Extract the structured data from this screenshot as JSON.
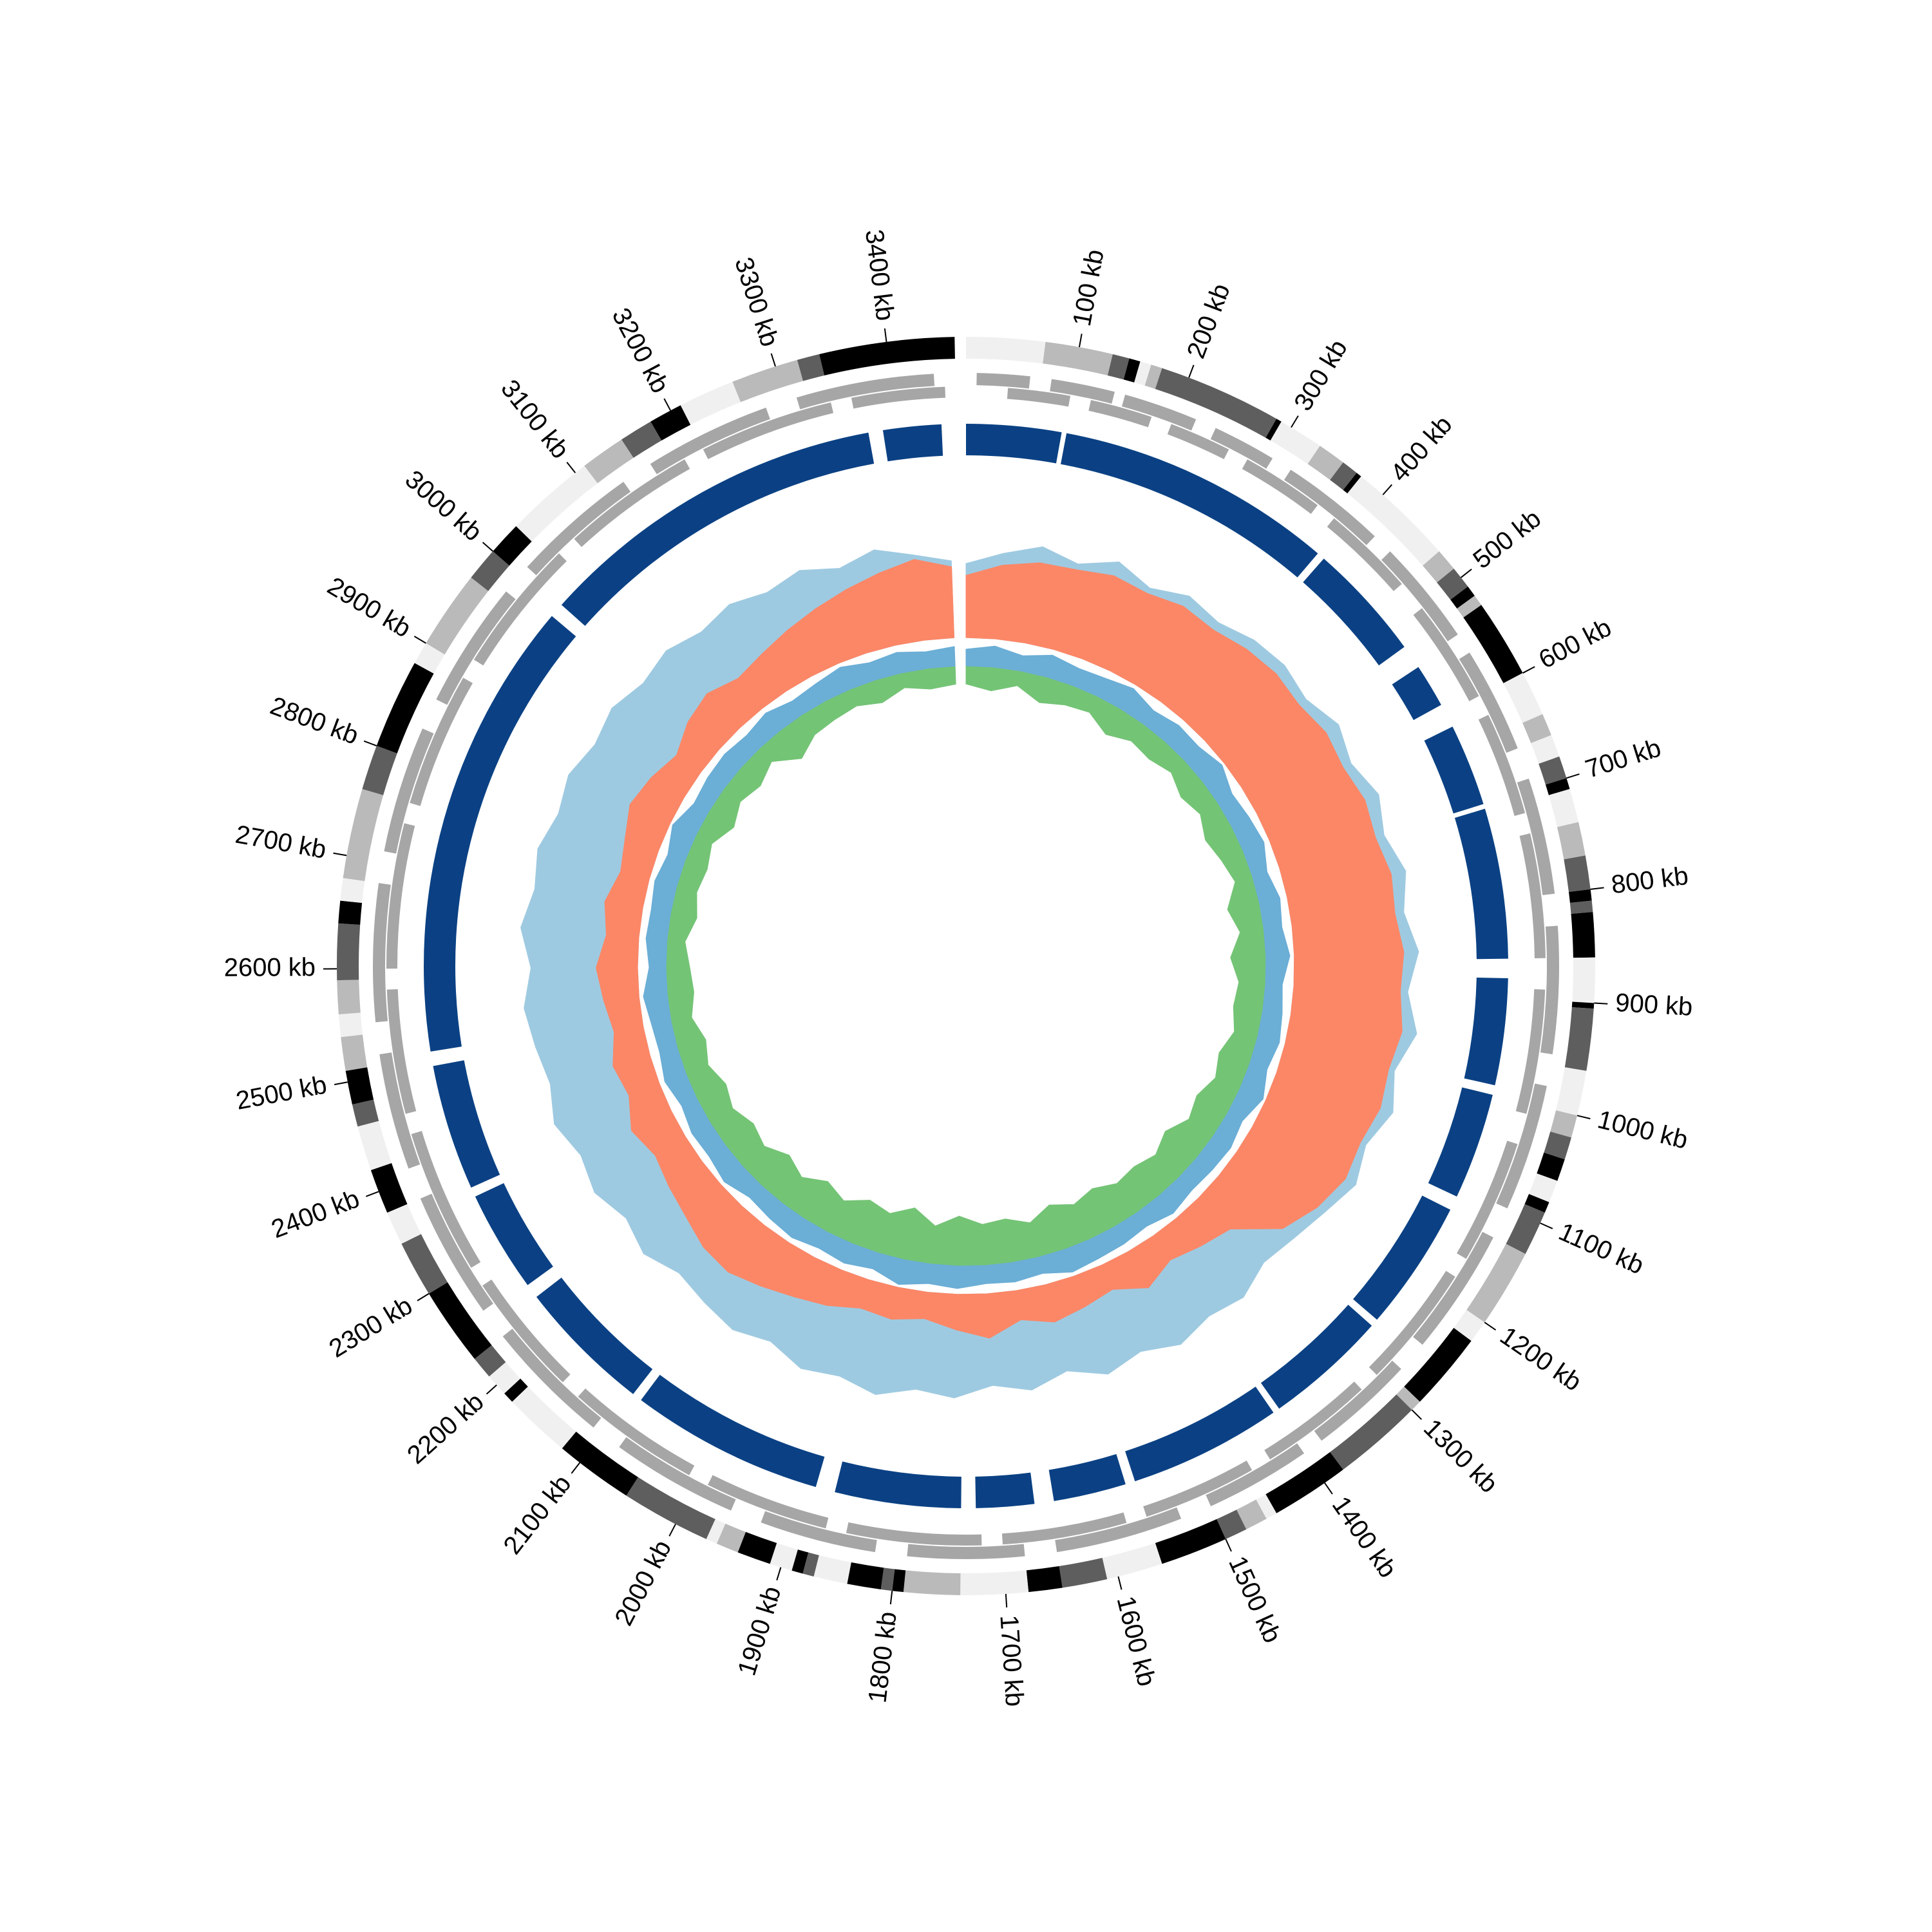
{
  "chart_data": {
    "type": "circos",
    "xlim": [
      0,
      3470
    ],
    "xticks": [
      {
        "value": 100,
        "label": "100 kb"
      },
      {
        "value": 200,
        "label": "200 kb"
      },
      {
        "value": 300,
        "label": "300 kb"
      },
      {
        "value": 400,
        "label": "400 kb"
      },
      {
        "value": 500,
        "label": "500 kb"
      },
      {
        "value": 600,
        "label": "600 kb"
      },
      {
        "value": 700,
        "label": "700 kb"
      },
      {
        "value": 800,
        "label": "800 kb"
      },
      {
        "value": 900,
        "label": "900 kb"
      },
      {
        "value": 1000,
        "label": "1000 kb"
      },
      {
        "value": 1100,
        "label": "1100 kb"
      },
      {
        "value": 1200,
        "label": "1200 kb"
      },
      {
        "value": 1300,
        "label": "1300 kb"
      },
      {
        "value": 1400,
        "label": "1400 kb"
      },
      {
        "value": 1500,
        "label": "1500 kb"
      },
      {
        "value": 1600,
        "label": "1600 kb"
      },
      {
        "value": 1700,
        "label": "1700 kb"
      },
      {
        "value": 1800,
        "label": "1800 kb"
      },
      {
        "value": 1900,
        "label": "1900 kb"
      },
      {
        "value": 2000,
        "label": "2000 kb"
      },
      {
        "value": 2100,
        "label": "2100 kb"
      },
      {
        "value": 2200,
        "label": "2200 kb"
      },
      {
        "value": 2300,
        "label": "2300 kb"
      },
      {
        "value": 2400,
        "label": "2400 kb"
      },
      {
        "value": 2500,
        "label": "2500 kb"
      },
      {
        "value": 2600,
        "label": "2600 kb"
      },
      {
        "value": 2700,
        "label": "2700 kb"
      },
      {
        "value": 2800,
        "label": "2800 kb"
      },
      {
        "value": 2900,
        "label": "2900 kb"
      },
      {
        "value": 3000,
        "label": "3000 kb"
      },
      {
        "value": 3100,
        "label": "3100 kb"
      },
      {
        "value": 3200,
        "label": "3200 kb"
      },
      {
        "value": 3300,
        "label": "3300 kb"
      },
      {
        "value": 3400,
        "label": "3400 kb"
      }
    ],
    "band_edges": [
      0,
      70,
      130,
      145,
      155,
      165,
      175,
      285,
      290,
      330,
      355,
      370,
      375,
      470,
      490,
      510,
      520,
      530,
      600,
      640,
      660,
      680,
      700,
      710,
      740,
      770,
      800,
      810,
      820,
      860,
      900,
      905,
      960,
      1000,
      1020,
      1040,
      1060,
      1080,
      1090,
      1130,
      1200,
      1220,
      1290,
      1300,
      1380,
      1450,
      1460,
      1480,
      1500,
      1560,
      1610,
      1650,
      1680,
      1740,
      1790,
      1800,
      1810,
      1840,
      1870,
      1880,
      1890,
      1910,
      1940,
      1960,
      1970,
      2050,
      2120,
      2180,
      2190,
      2210,
      2230,
      2300,
      2350,
      2380,
      2420,
      2460,
      2480,
      2510,
      2540,
      2560,
      2590,
      2640,
      2660,
      2680,
      2760,
      2800,
      2880,
      2900,
      2970,
      3000,
      3030,
      3110,
      3150,
      3180,
      3210,
      3260,
      3320,
      3340,
      3460
    ],
    "band_colors": [
      "#f0f0f0",
      "#bababa",
      "#5e5e5e",
      "#000000",
      "#f0f0f0",
      "#bababa",
      "#5e5e5e",
      "#000000",
      "#f0f0f0",
      "#bababa",
      "#5e5e5e",
      "#000000",
      "#f0f0f0",
      "#bababa",
      "#5e5e5e",
      "#000000",
      "#bababa",
      "#000000",
      "#f0f0f0",
      "#bababa",
      "#f0f0f0",
      "#5e5e5e",
      "#000000",
      "#f0f0f0",
      "#bababa",
      "#5e5e5e",
      "#000000",
      "#5e5e5e",
      "#000000",
      "#f0f0f0",
      "#000000",
      "#5e5e5e",
      "#f0f0f0",
      "#bababa",
      "#5e5e5e",
      "#000000",
      "#f0f0f0",
      "#000000",
      "#5e5e5e",
      "#bababa",
      "#f0f0f0",
      "#000000",
      "#bababa",
      "#5e5e5e",
      "#000000",
      "#f0f0f0",
      "#bababa",
      "#5e5e5e",
      "#000000",
      "#f0f0f0",
      "#5e5e5e",
      "#000000",
      "#f0f0f0",
      "#bababa",
      "#000000",
      "#5e5e5e",
      "#000000",
      "#f0f0f0",
      "#5e5e5e",
      "#000000",
      "#f0f0f0",
      "#000000",
      "#bababa",
      "#f0f0f0",
      "#5e5e5e",
      "#000000",
      "#f0f0f0",
      "#000000",
      "#f0f0f0",
      "#5e5e5e",
      "#000000",
      "#5e5e5e",
      "#f0f0f0",
      "#000000",
      "#f0f0f0",
      "#5e5e5e",
      "#000000",
      "#bababa",
      "#f0f0f0",
      "#bababa",
      "#5e5e5e",
      "#000000",
      "#f0f0f0",
      "#bababa",
      "#5e5e5e",
      "#000000",
      "#f0f0f0",
      "#bababa",
      "#5e5e5e",
      "#000000",
      "#f0f0f0",
      "#bababa",
      "#5e5e5e",
      "#000000",
      "#f0f0f0",
      "#bababa",
      "#5e5e5e",
      "#000000"
    ],
    "gene_tracks": [
      {
        "color": "#a6a6a6",
        "starts": [
          10,
          80,
          150,
          240,
          320,
          440,
          560,
          690,
          830,
          980,
          1130,
          1280,
          1400,
          1530,
          1680,
          1820,
          1960,
          2110,
          2260,
          2410,
          2550,
          2710,
          2860,
          3010,
          3160,
          3310
        ],
        "ends": [
          60,
          140,
          220,
          300,
          420,
          540,
          660,
          800,
          950,
          1100,
          1250,
          1380,
          1500,
          1650,
          1790,
          1930,
          2080,
          2230,
          2380,
          2520,
          2680,
          2830,
          2980,
          3130,
          3280,
          3440
        ]
      },
      {
        "color": "#a6a6a6",
        "starts": [
          40,
          120,
          200,
          280,
          380,
          500,
          620,
          740,
          890,
          1040,
          1180,
          1320,
          1450,
          1580,
          1720,
          1870,
          2010,
          2160,
          2300,
          2460,
          2600,
          2760,
          2910,
          3060,
          3210,
          3360
        ],
        "ends": [
          100,
          180,
          260,
          360,
          470,
          600,
          720,
          860,
          1010,
          1160,
          1300,
          1430,
          1560,
          1700,
          1850,
          1990,
          2140,
          2280,
          2440,
          2580,
          2740,
          2890,
          3040,
          3190,
          3340,
          3450
        ]
      }
    ],
    "blocks": {
      "color": "#0b4184",
      "starts": [
        0,
        103,
        398,
        545,
        615,
        705,
        880,
        1000,
        1125,
        1268,
        1402,
        1570,
        1665,
        1740,
        1890,
        2100,
        2255,
        2370,
        2515,
        3005,
        3385
      ],
      "ends": [
        98,
        390,
        520,
        590,
        700,
        860,
        990,
        1110,
        1260,
        1395,
        1560,
        1645,
        1725,
        1870,
        2090,
        2240,
        2360,
        2500,
        2990,
        3370,
        3445
      ]
    },
    "profile": {
      "x": [
        0,
        50,
        100,
        150,
        200,
        250,
        300,
        350,
        400,
        450,
        500,
        550,
        600,
        650,
        700,
        750,
        800,
        850,
        900,
        950,
        1000,
        1050,
        1100,
        1150,
        1200,
        1250,
        1300,
        1350,
        1400,
        1450,
        1500,
        1550,
        1600,
        1650,
        1700,
        1750,
        1800,
        1850,
        1900,
        1950,
        2000,
        2050,
        2100,
        2150,
        2200,
        2250,
        2300,
        2350,
        2400,
        2450,
        2500,
        2550,
        2600,
        2650,
        2700,
        2750,
        2800,
        2850,
        2900,
        2950,
        3000,
        3050,
        3100,
        3150,
        3200,
        3250,
        3300,
        3350,
        3400,
        3450
      ],
      "series": [
        {
          "color": "#9ecae1",
          "direction": "out",
          "values": [
            0.5,
            0.58,
            0.66,
            0.6,
            0.7,
            0.62,
            0.7,
            0.66,
            0.72,
            0.74,
            0.7,
            0.78,
            0.72,
            0.8,
            0.74,
            0.82,
            0.76,
            0.84,
            0.77,
            0.86,
            0.76,
            0.83,
            0.74,
            0.8,
            0.72,
            0.66,
            0.62,
            0.7,
            0.66,
            0.72,
            0.64,
            0.7,
            0.6,
            0.68,
            0.62,
            0.7,
            0.66,
            0.74,
            0.68,
            0.72,
            0.64,
            0.7,
            0.66,
            0.62,
            0.7,
            0.64,
            0.72,
            0.68,
            0.76,
            0.7,
            0.74,
            0.78,
            0.72,
            0.8,
            0.74,
            0.78,
            0.72,
            0.76,
            0.7,
            0.74,
            0.68,
            0.72,
            0.66,
            0.7,
            0.64,
            0.68,
            0.6,
            0.66,
            0.58,
            0.52
          ]
        },
        {
          "color": "#fb8767",
          "direction": "out",
          "values": [
            0.42,
            0.5,
            0.55,
            0.56,
            0.6,
            0.58,
            0.62,
            0.6,
            0.64,
            0.66,
            0.64,
            0.68,
            0.66,
            0.7,
            0.68,
            0.72,
            0.7,
            0.74,
            0.72,
            0.76,
            0.72,
            0.74,
            0.7,
            0.72,
            0.66,
            0.56,
            0.3,
            0.25,
            0.2,
            0.28,
            0.18,
            0.22,
            0.26,
            0.2,
            0.3,
            0.24,
            0.18,
            0.22,
            0.2,
            0.26,
            0.3,
            0.35,
            0.4,
            0.38,
            0.32,
            0.28,
            0.24,
            0.3,
            0.22,
            0.26,
            0.2,
            0.24,
            0.28,
            0.22,
            0.26,
            0.2,
            0.24,
            0.3,
            0.26,
            0.2,
            0.28,
            0.32,
            0.26,
            0.3,
            0.35,
            0.4,
            0.45,
            0.5,
            0.55,
            0.48
          ]
        }
      ]
    },
    "inner_profile": {
      "x": [
        0,
        50,
        100,
        150,
        200,
        250,
        300,
        350,
        400,
        450,
        500,
        550,
        600,
        650,
        700,
        750,
        800,
        850,
        900,
        950,
        1000,
        1050,
        1100,
        1150,
        1200,
        1250,
        1300,
        1350,
        1400,
        1450,
        1500,
        1550,
        1600,
        1650,
        1700,
        1750,
        1800,
        1850,
        1900,
        1950,
        2000,
        2050,
        2100,
        2150,
        2200,
        2250,
        2300,
        2350,
        2400,
        2450,
        2500,
        2550,
        2600,
        2650,
        2700,
        2750,
        2800,
        2850,
        2900,
        2950,
        3000,
        3050,
        3100,
        3150,
        3200,
        3250,
        3300,
        3350,
        3400,
        3450
      ],
      "series": [
        {
          "color": "#6baed6",
          "direction": "out",
          "values": [
            0.6,
            0.75,
            0.55,
            0.8,
            0.65,
            0.7,
            0.85,
            0.6,
            0.75,
            0.7,
            0.9,
            0.6,
            0.7,
            0.8,
            0.55,
            0.75,
            0.65,
            0.85,
            0.6,
            0.7,
            0.8,
            0.65,
            0.9,
            0.6,
            0.75,
            0.7,
            0.65,
            0.8,
            0.6,
            0.7,
            0.75,
            0.85,
            0.6,
            0.7,
            0.65,
            0.8,
            0.7,
            0.9,
            0.6,
            0.75,
            0.65,
            0.8,
            0.7,
            0.6,
            0.85,
            0.7,
            0.75,
            0.6,
            0.8,
            0.65,
            0.7,
            0.85,
            0.6,
            0.75,
            0.7,
            0.8,
            0.65,
            0.9,
            0.6,
            0.7,
            0.75,
            0.65,
            0.8,
            0.6,
            0.7,
            0.85,
            0.65,
            0.75,
            0.6,
            0.7
          ]
        },
        {
          "color": "#74c476",
          "direction": "in",
          "values": [
            0.3,
            0.4,
            0.25,
            0.45,
            0.35,
            0.3,
            0.5,
            0.35,
            0.4,
            0.3,
            0.45,
            0.35,
            0.5,
            0.4,
            0.3,
            0.55,
            0.4,
            0.6,
            0.45,
            0.5,
            0.4,
            0.55,
            0.45,
            0.6,
            0.5,
            0.7,
            0.55,
            0.65,
            0.6,
            0.75,
            0.65,
            0.8,
            0.6,
            0.75,
            0.7,
            0.85,
            0.65,
            0.9,
            0.7,
            0.8,
            0.6,
            0.75,
            0.55,
            0.7,
            0.5,
            0.6,
            0.45,
            0.55,
            0.4,
            0.5,
            0.35,
            0.45,
            0.4,
            0.3,
            0.45,
            0.35,
            0.4,
            0.3,
            0.5,
            0.35,
            0.45,
            0.3,
            0.6,
            0.4,
            0.35,
            0.3,
            0.4,
            0.25,
            0.35,
            0.3
          ]
        }
      ]
    }
  }
}
